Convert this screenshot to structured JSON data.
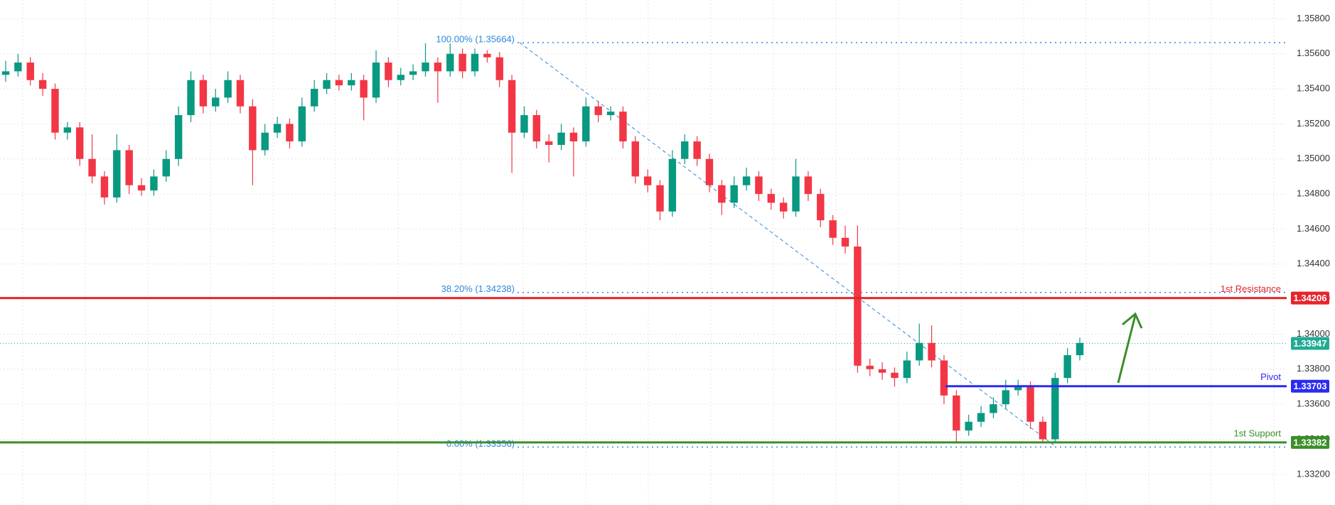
{
  "chart_data": {
    "type": "candlestick",
    "up_color": "#089981",
    "down_color": "#f23645",
    "grid": true,
    "ylim": [
      1.33025,
      1.35907
    ],
    "yticks": [
      {
        "value": 1.332,
        "label": "1.33200"
      },
      {
        "value": 1.334,
        "label": "1.33400"
      },
      {
        "value": 1.336,
        "label": "1.33600"
      },
      {
        "value": 1.338,
        "label": "1.33800"
      },
      {
        "value": 1.34,
        "label": "1.34000"
      },
      {
        "value": 1.342,
        "label": "1.34200"
      },
      {
        "value": 1.344,
        "label": "1.34400"
      },
      {
        "value": 1.346,
        "label": "1.34600"
      },
      {
        "value": 1.348,
        "label": "1.34800"
      },
      {
        "value": 1.35,
        "label": "1.35000"
      },
      {
        "value": 1.352,
        "label": "1.35200"
      },
      {
        "value": 1.354,
        "label": "1.35400"
      },
      {
        "value": 1.356,
        "label": "1.35600"
      },
      {
        "value": 1.358,
        "label": "1.35800"
      }
    ],
    "candles": [
      [
        1.3548,
        1.3556,
        1.3544,
        1.355
      ],
      [
        1.355,
        1.356,
        1.3547,
        1.3555
      ],
      [
        1.3555,
        1.3558,
        1.3542,
        1.3545
      ],
      [
        1.3545,
        1.3549,
        1.3536,
        1.354
      ],
      [
        1.354,
        1.3543,
        1.3511,
        1.3515
      ],
      [
        1.3515,
        1.3521,
        1.3511,
        1.3518
      ],
      [
        1.3518,
        1.3521,
        1.3496,
        1.35
      ],
      [
        1.35,
        1.3514,
        1.3486,
        1.349
      ],
      [
        1.349,
        1.3493,
        1.3474,
        1.3478
      ],
      [
        1.3478,
        1.3514,
        1.3475,
        1.3505
      ],
      [
        1.3505,
        1.3508,
        1.348,
        1.3485
      ],
      [
        1.3485,
        1.3489,
        1.3479,
        1.3482
      ],
      [
        1.3482,
        1.3494,
        1.3479,
        1.349
      ],
      [
        1.349,
        1.3505,
        1.3487,
        1.35
      ],
      [
        1.35,
        1.353,
        1.3496,
        1.3525
      ],
      [
        1.3525,
        1.355,
        1.3521,
        1.3545
      ],
      [
        1.3545,
        1.3548,
        1.3526,
        1.353
      ],
      [
        1.353,
        1.354,
        1.3527,
        1.3535
      ],
      [
        1.3535,
        1.355,
        1.3532,
        1.3545
      ],
      [
        1.3545,
        1.3548,
        1.3526,
        1.353
      ],
      [
        1.353,
        1.3534,
        1.3485,
        1.3505
      ],
      [
        1.3505,
        1.352,
        1.3502,
        1.3515
      ],
      [
        1.3515,
        1.3524,
        1.3512,
        1.352
      ],
      [
        1.352,
        1.3523,
        1.3506,
        1.351
      ],
      [
        1.351,
        1.3535,
        1.3507,
        1.353
      ],
      [
        1.353,
        1.3545,
        1.3527,
        1.354
      ],
      [
        1.354,
        1.3549,
        1.3537,
        1.3545
      ],
      [
        1.3545,
        1.3548,
        1.3539,
        1.3542
      ],
      [
        1.3542,
        1.3549,
        1.3539,
        1.3545
      ],
      [
        1.3545,
        1.3548,
        1.3522,
        1.3535
      ],
      [
        1.3535,
        1.3562,
        1.3532,
        1.3555
      ],
      [
        1.3555,
        1.3558,
        1.3541,
        1.3545
      ],
      [
        1.3545,
        1.3552,
        1.3542,
        1.3548
      ],
      [
        1.3548,
        1.3554,
        1.3545,
        1.355
      ],
      [
        1.355,
        1.3566,
        1.3547,
        1.3555
      ],
      [
        1.3555,
        1.3558,
        1.3532,
        1.355
      ],
      [
        1.355,
        1.3566,
        1.3547,
        1.356
      ],
      [
        1.356,
        1.3563,
        1.3546,
        1.355
      ],
      [
        1.355,
        1.3563,
        1.3547,
        1.356
      ],
      [
        1.356,
        1.3562,
        1.3555,
        1.3558
      ],
      [
        1.3558,
        1.3561,
        1.3541,
        1.3545
      ],
      [
        1.3545,
        1.3548,
        1.3492,
        1.3515
      ],
      [
        1.3515,
        1.353,
        1.3512,
        1.3525
      ],
      [
        1.3525,
        1.3528,
        1.3506,
        1.351
      ],
      [
        1.351,
        1.3514,
        1.3498,
        1.3508
      ],
      [
        1.3508,
        1.352,
        1.3505,
        1.3515
      ],
      [
        1.3515,
        1.3518,
        1.349,
        1.351
      ],
      [
        1.351,
        1.3535,
        1.3507,
        1.353
      ],
      [
        1.353,
        1.3533,
        1.3521,
        1.3525
      ],
      [
        1.3525,
        1.353,
        1.3522,
        1.3527
      ],
      [
        1.3527,
        1.353,
        1.3506,
        1.351
      ],
      [
        1.351,
        1.3513,
        1.3486,
        1.349
      ],
      [
        1.349,
        1.3494,
        1.3481,
        1.3485
      ],
      [
        1.3485,
        1.3488,
        1.3465,
        1.347
      ],
      [
        1.347,
        1.3505,
        1.3467,
        1.35
      ],
      [
        1.35,
        1.3514,
        1.3497,
        1.351
      ],
      [
        1.351,
        1.3513,
        1.3496,
        1.35
      ],
      [
        1.35,
        1.3503,
        1.3481,
        1.3485
      ],
      [
        1.3485,
        1.3488,
        1.3468,
        1.3475
      ],
      [
        1.3475,
        1.349,
        1.3472,
        1.3485
      ],
      [
        1.3485,
        1.3495,
        1.3482,
        1.349
      ],
      [
        1.349,
        1.3493,
        1.3476,
        1.348
      ],
      [
        1.348,
        1.3483,
        1.3471,
        1.3475
      ],
      [
        1.3475,
        1.3478,
        1.3466,
        1.347
      ],
      [
        1.347,
        1.35,
        1.3467,
        1.349
      ],
      [
        1.349,
        1.3493,
        1.3476,
        1.348
      ],
      [
        1.348,
        1.3483,
        1.3461,
        1.3465
      ],
      [
        1.3465,
        1.3468,
        1.3451,
        1.3455
      ],
      [
        1.3455,
        1.3462,
        1.3446,
        1.345
      ],
      [
        1.345,
        1.3462,
        1.3378,
        1.3382
      ],
      [
        1.3382,
        1.3386,
        1.3376,
        1.338
      ],
      [
        1.338,
        1.3384,
        1.3374,
        1.3378
      ],
      [
        1.3378,
        1.3381,
        1.337,
        1.3375
      ],
      [
        1.3375,
        1.339,
        1.3372,
        1.3385
      ],
      [
        1.3385,
        1.3406,
        1.3382,
        1.3395
      ],
      [
        1.3395,
        1.3405,
        1.3381,
        1.3385
      ],
      [
        1.3385,
        1.3388,
        1.336,
        1.3365
      ],
      [
        1.3365,
        1.3368,
        1.3338,
        1.3345
      ],
      [
        1.3345,
        1.3354,
        1.3342,
        1.335
      ],
      [
        1.335,
        1.3359,
        1.3347,
        1.3355
      ],
      [
        1.3355,
        1.3364,
        1.3352,
        1.336
      ],
      [
        1.336,
        1.3374,
        1.3357,
        1.3368
      ],
      [
        1.3368,
        1.3374,
        1.3365,
        1.337
      ],
      [
        1.337,
        1.3373,
        1.3346,
        1.335
      ],
      [
        1.335,
        1.3353,
        1.3338,
        1.334
      ],
      [
        1.334,
        1.3378,
        1.3338,
        1.3375
      ],
      [
        1.3375,
        1.3392,
        1.3372,
        1.3388
      ],
      [
        1.3388,
        1.3398,
        1.3385,
        1.3395
      ]
    ],
    "current_price": {
      "value": 1.33947,
      "color": "#22ab94"
    },
    "levels": [
      {
        "name": "1st Resistance",
        "value": 1.34206,
        "color": "#e5252c"
      },
      {
        "name": "Pivot",
        "value": 1.33703,
        "color": "#2b2bf0"
      },
      {
        "name": "1st Support",
        "value": 1.33382,
        "color": "#3b8e2a"
      }
    ],
    "fib": [
      {
        "label": "100.00% (1.35664)",
        "value": 1.35664
      },
      {
        "label": "38.20% (1.34238)",
        "value": 1.34238
      },
      {
        "label": "0.00% (1.33356)",
        "value": 1.33356
      }
    ],
    "fib_color": "#2e86de"
  }
}
